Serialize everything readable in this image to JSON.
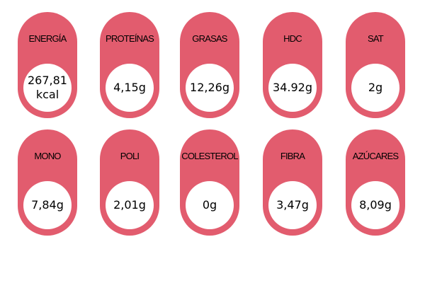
{
  "colors": {
    "pill": "#e25c6e",
    "circle": "#ffffff",
    "text": "#000000"
  },
  "nutrients": [
    {
      "label": "ENERGÍA",
      "value": "267,81\nkcal"
    },
    {
      "label": "PROTEÍNAS",
      "value": "4,15g"
    },
    {
      "label": "GRASAS",
      "value": "12,26g"
    },
    {
      "label": "HDC",
      "value": "34.92g"
    },
    {
      "label": "SAT",
      "value": "2g"
    },
    {
      "label": "MONO",
      "value": "7,84g"
    },
    {
      "label": "POLI",
      "value": "2,01g"
    },
    {
      "label": "COLESTEROL",
      "value": "0g"
    },
    {
      "label": "FIBRA",
      "value": "3,47g"
    },
    {
      "label": "AZÚCARES",
      "value": "8,09g"
    }
  ]
}
